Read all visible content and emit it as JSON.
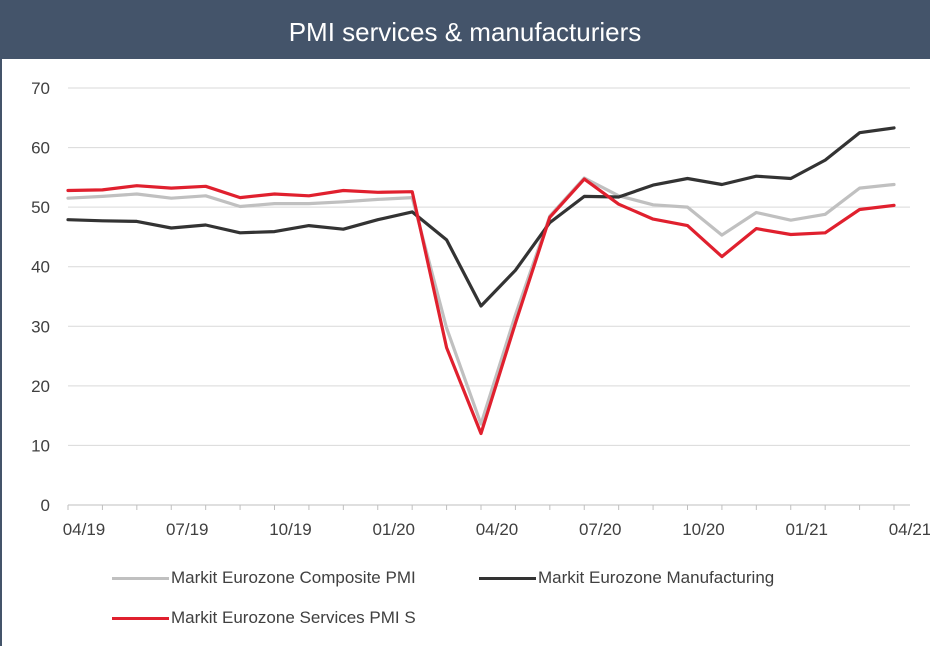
{
  "chart_data": {
    "type": "line",
    "title": "PMI services & manufacturiers",
    "xlabel": "",
    "ylabel": "",
    "ylim": [
      0,
      70
    ],
    "yticks": [
      0,
      10,
      20,
      30,
      40,
      50,
      60,
      70
    ],
    "x": [
      "04/19",
      "05/19",
      "06/19",
      "07/19",
      "08/19",
      "09/19",
      "10/19",
      "11/19",
      "12/19",
      "01/20",
      "02/20",
      "03/20",
      "04/20",
      "05/20",
      "06/20",
      "07/20",
      "08/20",
      "09/20",
      "10/20",
      "11/20",
      "12/20",
      "01/21",
      "02/21",
      "03/21",
      "04/21"
    ],
    "xtick_labels": [
      "04/19",
      "07/19",
      "10/19",
      "01/20",
      "04/20",
      "07/20",
      "10/20",
      "01/21",
      "04/21"
    ],
    "grid": true,
    "legend_position": "bottom",
    "series": [
      {
        "name": "Markit Eurozone Composite PMI",
        "color": "#c0c0c0",
        "values": [
          51.5,
          51.8,
          52.2,
          51.5,
          51.9,
          50.1,
          50.6,
          50.6,
          50.9,
          51.3,
          51.6,
          29.7,
          13.6,
          31.9,
          48.5,
          54.9,
          51.9,
          50.4,
          50.0,
          45.3,
          49.1,
          47.8,
          48.8,
          53.2,
          53.8
        ]
      },
      {
        "name": "Markit Eurozone Manufacturing",
        "color": "#333333",
        "values": [
          47.9,
          47.7,
          47.6,
          46.5,
          47.0,
          45.7,
          45.9,
          46.9,
          46.3,
          47.9,
          49.2,
          44.5,
          33.4,
          39.4,
          47.4,
          51.8,
          51.7,
          53.7,
          54.8,
          53.8,
          55.2,
          54.8,
          57.9,
          62.5,
          63.3
        ]
      },
      {
        "name": "Markit Eurozone Services PMI S",
        "color": "#e0202e",
        "values": [
          52.8,
          52.9,
          53.6,
          53.2,
          53.5,
          51.6,
          52.2,
          51.9,
          52.8,
          52.5,
          52.6,
          26.4,
          12.0,
          30.5,
          48.3,
          54.7,
          50.5,
          48.0,
          46.9,
          41.7,
          46.4,
          45.4,
          45.7,
          49.6,
          50.3
        ]
      }
    ]
  }
}
